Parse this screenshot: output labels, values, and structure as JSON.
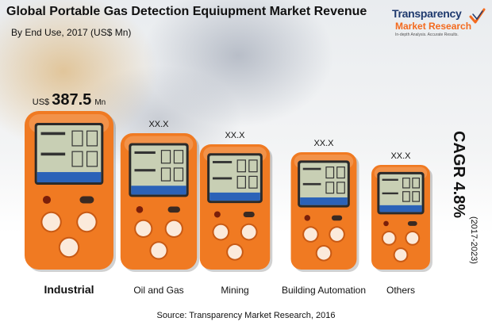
{
  "header": {
    "title": "Global Portable Gas Detection Equiupment Market Revenue",
    "subtitle": "By End Use, 2017 (US$ Mn)"
  },
  "logo": {
    "name_line1": "Transparency",
    "name_line2": "Market Research",
    "tagline": "In-depth Analysis. Accurate Results.",
    "accent_color": "#f36a1e",
    "brand_color": "#1f3a6e"
  },
  "chart_data": {
    "type": "bar",
    "title": "Global Portable Gas Detection Equiupment Market Revenue",
    "subtitle": "By End Use, 2017 (US$ Mn)",
    "categories": [
      "Industrial",
      "Oil and Gas",
      "Mining",
      "Building Automation",
      "Others"
    ],
    "values": [
      387.5,
      null,
      null,
      null,
      null
    ],
    "value_labels": [
      "387.5",
      "XX.X",
      "XX.X",
      "XX.X",
      "XX.X"
    ],
    "value_prefix": "US$",
    "value_unit": "Mn",
    "relative_heights": [
      1.0,
      0.86,
      0.79,
      0.74,
      0.66
    ],
    "bar_style": "portable gas detector devices",
    "bar_color": "#f07a22"
  },
  "cagr": {
    "value": "CAGR 4.8%",
    "period": "(2017-2023)"
  },
  "source": "Source: Transparency Market Research, 2016"
}
